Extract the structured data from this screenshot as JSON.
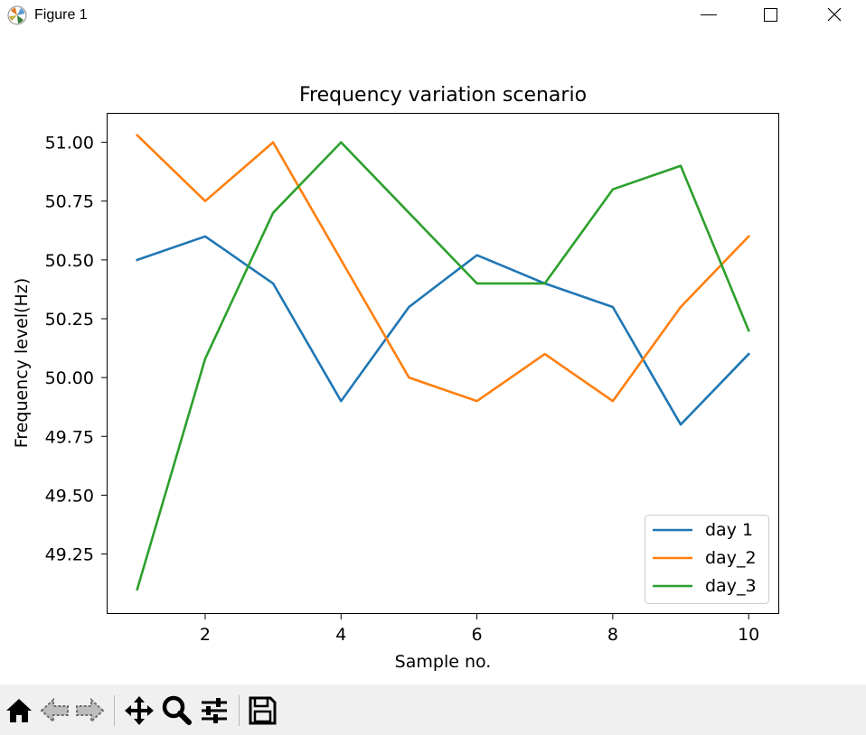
{
  "window": {
    "title": "Figure 1",
    "icon": "matplotlib-logo-icon",
    "controls": [
      "minimize-icon",
      "maximize-icon",
      "close-icon"
    ]
  },
  "toolbar": {
    "buttons": [
      "home-icon",
      "back-arrow-icon",
      "forward-arrow-icon",
      "pan-move-icon",
      "zoom-magnifier-icon",
      "configure-subplots-icon",
      "save-floppy-icon"
    ]
  },
  "chart_data": {
    "type": "line",
    "title": "Frequency variation scenario",
    "xlabel": "Sample no.",
    "ylabel": "Frequency level(Hz)",
    "xlim": [
      0.55,
      10.45
    ],
    "ylim": [
      48.995,
      51.125
    ],
    "x_ticks": [
      2,
      4,
      6,
      8,
      10
    ],
    "x_tick_labels": [
      "2",
      "4",
      "6",
      "8",
      "10"
    ],
    "y_ticks": [
      49.25,
      49.5,
      49.75,
      50.0,
      50.25,
      50.5,
      50.75,
      51.0
    ],
    "y_tick_labels": [
      "49.25",
      "49.50",
      "49.75",
      "50.00",
      "50.25",
      "50.50",
      "50.75",
      "51.00"
    ],
    "grid": false,
    "legend_position": "lower-right",
    "x": [
      1,
      2,
      3,
      4,
      5,
      6,
      7,
      8,
      9,
      10
    ],
    "series": [
      {
        "name": "day 1",
        "color": "#1f77b4",
        "values": [
          50.5,
          50.6,
          50.4,
          49.9,
          50.3,
          50.52,
          50.4,
          50.3,
          49.8,
          50.1
        ]
      },
      {
        "name": "day_2",
        "color": "#ff7f0e",
        "values": [
          51.03,
          50.75,
          51.0,
          50.5,
          50.0,
          49.9,
          50.1,
          49.9,
          50.3,
          50.6
        ]
      },
      {
        "name": "day_3",
        "color": "#2ca02c",
        "values": [
          49.1,
          50.08,
          50.7,
          51.0,
          50.7,
          50.4,
          50.4,
          50.8,
          50.9,
          50.2
        ]
      }
    ]
  }
}
